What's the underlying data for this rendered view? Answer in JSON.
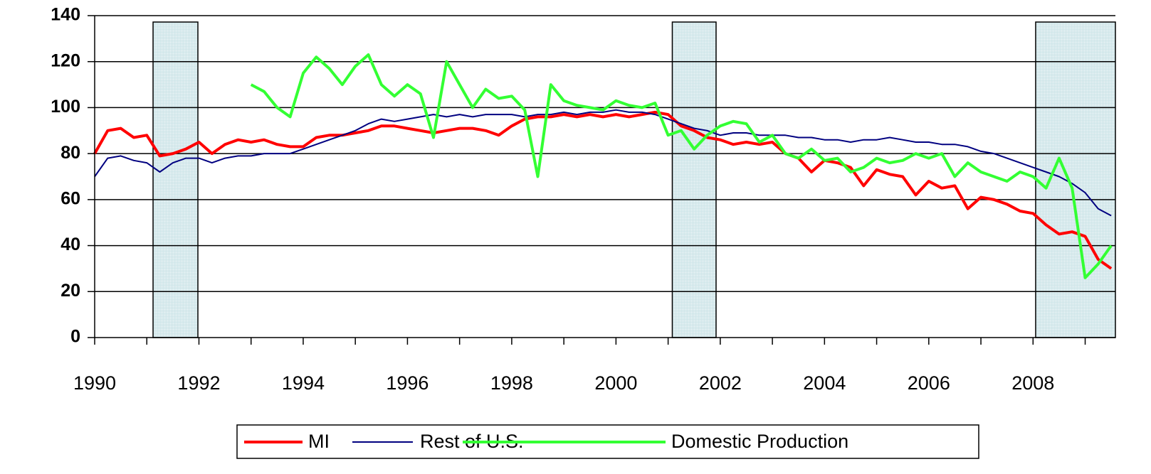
{
  "chart_data": {
    "type": "line",
    "x": [
      1990,
      1990.25,
      1990.5,
      1990.75,
      1991,
      1991.25,
      1991.5,
      1991.75,
      1992,
      1992.25,
      1992.5,
      1992.75,
      1993,
      1993.25,
      1993.5,
      1993.75,
      1994,
      1994.25,
      1994.5,
      1994.75,
      1995,
      1995.25,
      1995.5,
      1995.75,
      1996,
      1996.25,
      1996.5,
      1996.75,
      1997,
      1997.25,
      1997.5,
      1997.75,
      1998,
      1998.25,
      1998.5,
      1998.75,
      1999,
      1999.25,
      1999.5,
      1999.75,
      2000,
      2000.25,
      2000.5,
      2000.75,
      2001,
      2001.25,
      2001.5,
      2001.75,
      2002,
      2002.25,
      2002.5,
      2002.75,
      2003,
      2003.25,
      2003.5,
      2003.75,
      2004,
      2004.25,
      2004.5,
      2004.75,
      2005,
      2005.25,
      2005.5,
      2005.75,
      2006,
      2006.25,
      2006.5,
      2006.75,
      2007,
      2007.25,
      2007.5,
      2007.75,
      2008,
      2008.25,
      2008.5,
      2008.75,
      2009,
      2009.25,
      2009.5
    ],
    "series": [
      {
        "name": "MI",
        "color": "#ff0000",
        "values": [
          80,
          90,
          91,
          87,
          88,
          79,
          80,
          82,
          85,
          80,
          84,
          86,
          85,
          86,
          84,
          83,
          83,
          87,
          88,
          88,
          89,
          90,
          92,
          92,
          91,
          90,
          89,
          90,
          91,
          91,
          90,
          88,
          92,
          95,
          96,
          96,
          97,
          96,
          97,
          96,
          97,
          96,
          97,
          98,
          97,
          92,
          90,
          87,
          86,
          84,
          85,
          84,
          85,
          80,
          78,
          72,
          77,
          76,
          74,
          66,
          73,
          71,
          70,
          62,
          68,
          65,
          66,
          56,
          61,
          60,
          58,
          55,
          54,
          49,
          45,
          46,
          44,
          34,
          30
        ]
      },
      {
        "name": "Rest of U.S.",
        "color": "#000080",
        "values": [
          70,
          78,
          79,
          77,
          76,
          72,
          76,
          78,
          78,
          76,
          78,
          79,
          79,
          80,
          80,
          80,
          82,
          84,
          86,
          88,
          90,
          93,
          95,
          94,
          95,
          96,
          97,
          96,
          97,
          96,
          97,
          97,
          97,
          96,
          97,
          97,
          98,
          97,
          98,
          98,
          99,
          98,
          98,
          97,
          95,
          93,
          91,
          90,
          88,
          89,
          89,
          88,
          88,
          88,
          87,
          87,
          86,
          86,
          85,
          86,
          86,
          87,
          86,
          85,
          85,
          84,
          84,
          83,
          81,
          80,
          78,
          76,
          74,
          72,
          70,
          67,
          63,
          56,
          53
        ]
      },
      {
        "name": "Domestic Production",
        "color": "#33ff33",
        "values": [
          null,
          null,
          null,
          null,
          null,
          null,
          null,
          null,
          null,
          null,
          null,
          null,
          110,
          107,
          100,
          96,
          115,
          122,
          117,
          110,
          118,
          123,
          110,
          105,
          110,
          106,
          87,
          120,
          110,
          100,
          108,
          104,
          105,
          99,
          70,
          110,
          103,
          101,
          100,
          99,
          103,
          101,
          100,
          102,
          88,
          90,
          82,
          88,
          92,
          94,
          93,
          85,
          88,
          80,
          78,
          82,
          77,
          78,
          72,
          74,
          78,
          76,
          77,
          80,
          78,
          80,
          70,
          76,
          72,
          70,
          68,
          72,
          70,
          65,
          78,
          65,
          26,
          32,
          40
        ]
      }
    ],
    "xlim": [
      1990,
      2009.58
    ],
    "xticks": [
      1990,
      1992,
      1994,
      1996,
      1998,
      2000,
      2002,
      2004,
      2006,
      2008
    ],
    "xminorticks": [
      1991,
      1993,
      1995,
      1997,
      1999,
      2001,
      2003,
      2005,
      2007,
      2009
    ],
    "ylim": [
      0,
      140
    ],
    "yticks": [
      0,
      20,
      40,
      60,
      80,
      100,
      120,
      140
    ],
    "grid": true,
    "shaded_periods": [
      [
        1991.12,
        1991.98
      ],
      [
        2001.08,
        2001.92
      ],
      [
        2008.05,
        2009.58
      ]
    ],
    "legend": "bottom"
  }
}
